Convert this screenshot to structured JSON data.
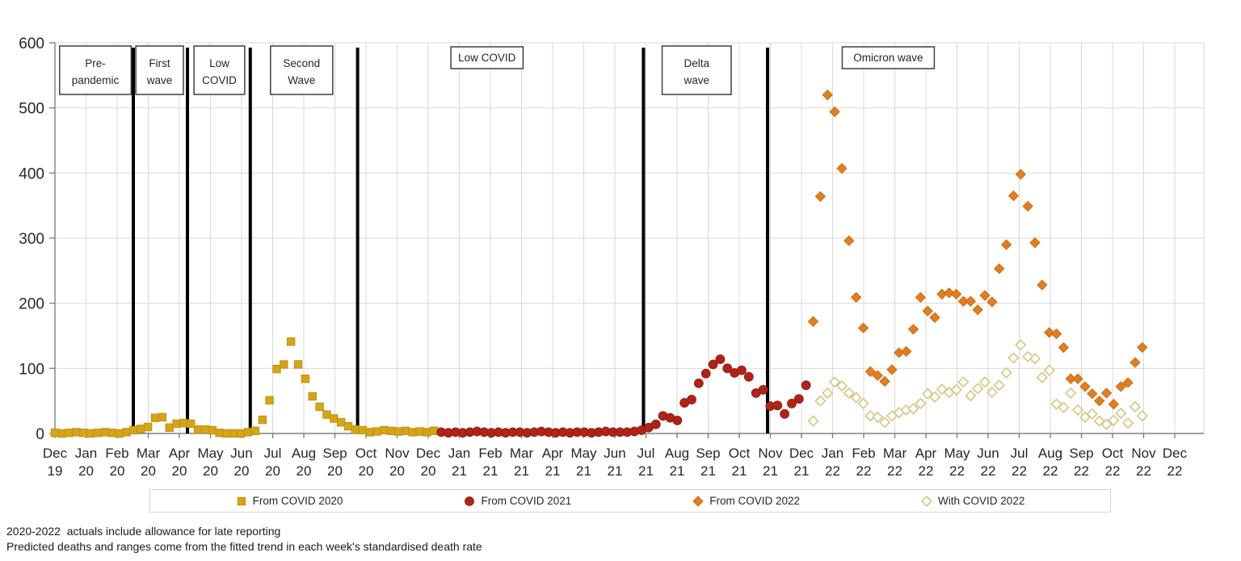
{
  "page": {
    "footnotes": [
      "2020-2022  actuals include allowance for late reporting",
      "Predicted deaths and ranges come from the fitted trend in each week's standardised death rate"
    ]
  },
  "colors": {
    "gold": "#d6a418",
    "gold_edge": "#c09110",
    "dark_red": "#b02318",
    "dark_red_edge": "#961c10",
    "orange": "#e07e24",
    "orange_edge": "#cf6c13",
    "pale_khaki": "#d2c787",
    "pale_fill": "#fffef7",
    "gridline": "#d9d9d9",
    "axis": "#808080",
    "divider": "#000000",
    "box_border": "#3f3f3f",
    "text": "#262626"
  },
  "chart_data": {
    "type": "scatter",
    "title": "",
    "xlabel": "",
    "ylabel": "",
    "x_unit": "weeks since first week of Dec 2019",
    "y_axis": {
      "ticks": [
        0,
        100,
        200,
        300,
        400,
        500,
        600
      ],
      "range": [
        0,
        600
      ],
      "grid": true
    },
    "x_axis": {
      "months": [
        [
          "Dec",
          "19"
        ],
        [
          "Jan",
          "20"
        ],
        [
          "Feb",
          "20"
        ],
        [
          "Mar",
          "20"
        ],
        [
          "Apr",
          "20"
        ],
        [
          "May",
          "20"
        ],
        [
          "Jun",
          "20"
        ],
        [
          "Jul",
          "20"
        ],
        [
          "Aug",
          "20"
        ],
        [
          "Sep",
          "20"
        ],
        [
          "Oct",
          "20"
        ],
        [
          "Nov",
          "20"
        ],
        [
          "Dec",
          "20"
        ],
        [
          "Jan",
          "21"
        ],
        [
          "Feb",
          "21"
        ],
        [
          "Mar",
          "21"
        ],
        [
          "Apr",
          "21"
        ],
        [
          "May",
          "21"
        ],
        [
          "Jun",
          "21"
        ],
        [
          "Jul",
          "21"
        ],
        [
          "Aug",
          "21"
        ],
        [
          "Sep",
          "21"
        ],
        [
          "Oct",
          "21"
        ],
        [
          "Nov",
          "21"
        ],
        [
          "Dec",
          "21"
        ],
        [
          "Jan",
          "22"
        ],
        [
          "Feb",
          "22"
        ],
        [
          "Mar",
          "22"
        ],
        [
          "Apr",
          "22"
        ],
        [
          "May",
          "22"
        ],
        [
          "Jun",
          "22"
        ],
        [
          "Jul",
          "22"
        ],
        [
          "Aug",
          "22"
        ],
        [
          "Sep",
          "22"
        ],
        [
          "Oct",
          "22"
        ],
        [
          "Nov",
          "22"
        ],
        [
          "Dec",
          "22"
        ]
      ],
      "grid": true
    },
    "legend_position": "bottom",
    "annotations": {
      "dividers_at_month": [
        2.52,
        4.26,
        6.28,
        9.73,
        18.92,
        22.91
      ],
      "period_boxes": [
        {
          "lines": [
            "Pre-",
            "pandemic"
          ],
          "from_month": 0.15,
          "to_month": 2.45
        },
        {
          "lines": [
            "First",
            "wave"
          ],
          "from_month": 2.6,
          "to_month": 4.13
        },
        {
          "lines": [
            "Low",
            "COVID"
          ],
          "from_month": 4.47,
          "to_month": 6.1
        },
        {
          "lines": [
            "Second",
            "Wave"
          ],
          "from_month": 6.93,
          "to_month": 8.93
        },
        {
          "lines": [
            "Low COVID"
          ],
          "from_month": 12.73,
          "to_month": 15.05
        },
        {
          "lines": [
            "Delta",
            "wave"
          ],
          "from_month": 19.52,
          "to_month": 21.74
        },
        {
          "lines": [
            "Omicron wave"
          ],
          "from_month": 25.31,
          "to_month": 28.27
        }
      ]
    },
    "series": [
      {
        "name": "From COVID 2020",
        "marker": "square",
        "color": "#d6a418",
        "edge": "#c09110",
        "points": [
          [
            0,
            1
          ],
          [
            1,
            0
          ],
          [
            2,
            1
          ],
          [
            3,
            2
          ],
          [
            4,
            1
          ],
          [
            5,
            0
          ],
          [
            6,
            1
          ],
          [
            7,
            2
          ],
          [
            8,
            1
          ],
          [
            9,
            0
          ],
          [
            10,
            2
          ],
          [
            11,
            5
          ],
          [
            12,
            7
          ],
          [
            13,
            10
          ],
          [
            14,
            24
          ],
          [
            15,
            25
          ],
          [
            16,
            9
          ],
          [
            17,
            15
          ],
          [
            18,
            16
          ],
          [
            19,
            15
          ],
          [
            20,
            6
          ],
          [
            21,
            6
          ],
          [
            22,
            5
          ],
          [
            23,
            1
          ],
          [
            24,
            0
          ],
          [
            25,
            0
          ],
          [
            26,
            0
          ],
          [
            27,
            2
          ],
          [
            28,
            4
          ],
          [
            29,
            21
          ],
          [
            30,
            51
          ],
          [
            31,
            99
          ],
          [
            32,
            106
          ],
          [
            33,
            141
          ],
          [
            34,
            106
          ],
          [
            35,
            84
          ],
          [
            36,
            57
          ],
          [
            37,
            41
          ],
          [
            38,
            29
          ],
          [
            39,
            23
          ],
          [
            40,
            17
          ],
          [
            41,
            11
          ],
          [
            42,
            6
          ],
          [
            43,
            5
          ],
          [
            44,
            2
          ],
          [
            45,
            3
          ],
          [
            46,
            5
          ],
          [
            47,
            4
          ],
          [
            48,
            3
          ],
          [
            49,
            4
          ],
          [
            50,
            2
          ],
          [
            51,
            3
          ],
          [
            52,
            2
          ],
          [
            53,
            4
          ]
        ]
      },
      {
        "name": "From COVID 2021",
        "marker": "circle",
        "color": "#b02318",
        "edge": "#961c10",
        "points": [
          [
            54,
            2
          ],
          [
            55,
            1
          ],
          [
            56,
            2
          ],
          [
            57,
            1
          ],
          [
            58,
            2
          ],
          [
            59,
            3
          ],
          [
            60,
            2
          ],
          [
            61,
            1
          ],
          [
            62,
            2
          ],
          [
            63,
            1
          ],
          [
            64,
            2
          ],
          [
            65,
            2
          ],
          [
            66,
            1
          ],
          [
            67,
            2
          ],
          [
            68,
            3
          ],
          [
            69,
            2
          ],
          [
            70,
            1
          ],
          [
            71,
            2
          ],
          [
            72,
            1
          ],
          [
            73,
            2
          ],
          [
            74,
            2
          ],
          [
            75,
            1
          ],
          [
            76,
            2
          ],
          [
            77,
            3
          ],
          [
            78,
            2
          ],
          [
            79,
            2
          ],
          [
            80,
            2
          ],
          [
            81,
            3
          ],
          [
            82,
            5
          ],
          [
            83,
            9
          ],
          [
            84,
            14
          ],
          [
            85,
            27
          ],
          [
            86,
            24
          ],
          [
            87,
            20
          ],
          [
            88,
            47
          ],
          [
            89,
            52
          ],
          [
            90,
            77
          ],
          [
            91,
            92
          ],
          [
            92,
            106
          ],
          [
            93,
            114
          ],
          [
            94,
            100
          ],
          [
            95,
            93
          ],
          [
            96,
            97
          ],
          [
            97,
            87
          ],
          [
            98,
            62
          ],
          [
            99,
            67
          ],
          [
            100,
            42
          ],
          [
            101,
            43
          ],
          [
            102,
            30
          ],
          [
            103,
            46
          ],
          [
            104,
            53
          ],
          [
            105,
            74
          ]
        ]
      },
      {
        "name": "From COVID 2022",
        "marker": "diamond",
        "color": "#e07e24",
        "edge": "#cf6c13",
        "points": [
          [
            106,
            172
          ],
          [
            107,
            364
          ],
          [
            108,
            520
          ],
          [
            109,
            494
          ],
          [
            110,
            407
          ],
          [
            111,
            296
          ],
          [
            112,
            209
          ],
          [
            113,
            162
          ],
          [
            114,
            95
          ],
          [
            115,
            89
          ],
          [
            116,
            80
          ],
          [
            117,
            98
          ],
          [
            118,
            124
          ],
          [
            119,
            126
          ],
          [
            120,
            160
          ],
          [
            121,
            209
          ],
          [
            122,
            188
          ],
          [
            123,
            178
          ],
          [
            124,
            214
          ],
          [
            125,
            216
          ],
          [
            126,
            214
          ],
          [
            127,
            203
          ],
          [
            128,
            203
          ],
          [
            129,
            190
          ],
          [
            130,
            212
          ],
          [
            131,
            202
          ],
          [
            132,
            253
          ],
          [
            133,
            290
          ],
          [
            134,
            365
          ],
          [
            135,
            398
          ],
          [
            136,
            349
          ],
          [
            137,
            293
          ],
          [
            138,
            228
          ],
          [
            139,
            155
          ],
          [
            140,
            153
          ],
          [
            141,
            132
          ],
          [
            142,
            84
          ],
          [
            143,
            84
          ],
          [
            144,
            72
          ],
          [
            145,
            61
          ],
          [
            146,
            50
          ],
          [
            147,
            62
          ],
          [
            148,
            45
          ],
          [
            149,
            72
          ],
          [
            150,
            78
          ],
          [
            151,
            109
          ],
          [
            152,
            132
          ]
        ]
      },
      {
        "name": "With COVID 2022",
        "marker": "diamond-open",
        "color": "#fffef7",
        "edge": "#d2c787",
        "points": [
          [
            106,
            19
          ],
          [
            107,
            50
          ],
          [
            108,
            62
          ],
          [
            109,
            79
          ],
          [
            110,
            73
          ],
          [
            111,
            62
          ],
          [
            112,
            55
          ],
          [
            113,
            46
          ],
          [
            114,
            27
          ],
          [
            115,
            25
          ],
          [
            116,
            17
          ],
          [
            117,
            27
          ],
          [
            118,
            32
          ],
          [
            119,
            36
          ],
          [
            120,
            38
          ],
          [
            121,
            46
          ],
          [
            122,
            61
          ],
          [
            123,
            56
          ],
          [
            124,
            68
          ],
          [
            125,
            63
          ],
          [
            126,
            67
          ],
          [
            127,
            79
          ],
          [
            128,
            58
          ],
          [
            129,
            69
          ],
          [
            130,
            79
          ],
          [
            131,
            63
          ],
          [
            132,
            74
          ],
          [
            133,
            93
          ],
          [
            134,
            116
          ],
          [
            135,
            136
          ],
          [
            136,
            118
          ],
          [
            137,
            115
          ],
          [
            138,
            86
          ],
          [
            139,
            97
          ],
          [
            140,
            45
          ],
          [
            141,
            40
          ],
          [
            142,
            62
          ],
          [
            143,
            36
          ],
          [
            144,
            25
          ],
          [
            145,
            30
          ],
          [
            146,
            19
          ],
          [
            147,
            14
          ],
          [
            148,
            20
          ],
          [
            149,
            31
          ],
          [
            150,
            16
          ],
          [
            151,
            41
          ],
          [
            152,
            27
          ]
        ]
      }
    ]
  }
}
